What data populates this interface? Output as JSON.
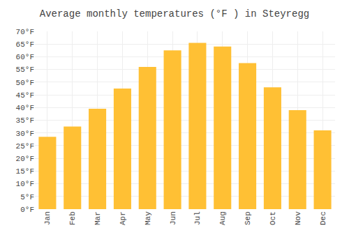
{
  "chart_data": {
    "type": "bar",
    "title": "Average monthly temperatures (°F ) in Steyregg",
    "categories": [
      "Jan",
      "Feb",
      "Mar",
      "Apr",
      "May",
      "Jun",
      "Jul",
      "Aug",
      "Sep",
      "Oct",
      "Nov",
      "Dec"
    ],
    "values": [
      28.5,
      32.5,
      39.5,
      47.5,
      56.0,
      62.5,
      65.5,
      64.0,
      57.5,
      48.0,
      39.0,
      31.0
    ],
    "color": "#FFC034",
    "ylim": [
      0,
      70
    ],
    "yticks": [
      {
        "value": 0,
        "label": "0°F"
      },
      {
        "value": 5,
        "label": "5°F"
      },
      {
        "value": 10,
        "label": "10°F"
      },
      {
        "value": 15,
        "label": "15°F"
      },
      {
        "value": 20,
        "label": "20°F"
      },
      {
        "value": 25,
        "label": "25°F"
      },
      {
        "value": 30,
        "label": "30°F"
      },
      {
        "value": 35,
        "label": "35°F"
      },
      {
        "value": 40,
        "label": "40°F"
      },
      {
        "value": 45,
        "label": "45°F"
      },
      {
        "value": 50,
        "label": "50°F"
      },
      {
        "value": 55,
        "label": "55°F"
      },
      {
        "value": 60,
        "label": "60°F"
      },
      {
        "value": 65,
        "label": "65°F"
      },
      {
        "value": 70,
        "label": "70°F"
      }
    ],
    "grid": true
  }
}
